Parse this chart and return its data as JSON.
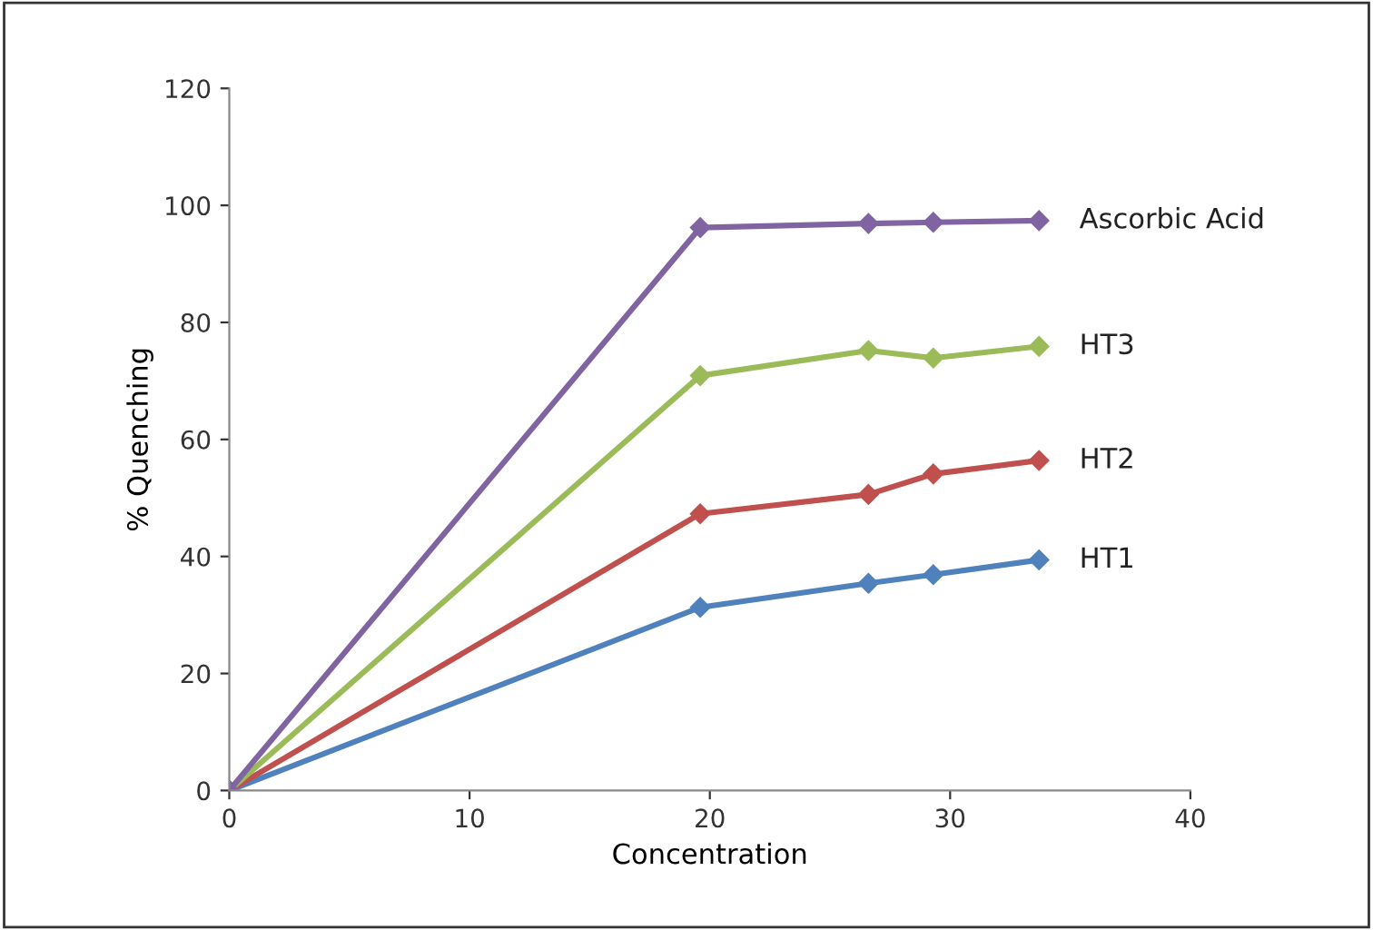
{
  "chart_data": {
    "type": "line",
    "xlabel": "Concentration",
    "ylabel": "% Quenching",
    "x": [
      0,
      19.6,
      26.6,
      29.3,
      33.7
    ],
    "xlim": [
      0,
      40
    ],
    "xticks": [
      0,
      10,
      20,
      30,
      40
    ],
    "ylim": [
      0,
      120
    ],
    "yticks": [
      0,
      20,
      40,
      60,
      80,
      100,
      120
    ],
    "grid": false,
    "legend": false,
    "marker": "diamond",
    "line_style": "solid",
    "series": [
      {
        "name": "HT1",
        "color": "#4f81bd",
        "values": [
          0,
          31.3,
          35.4,
          36.9,
          39.4
        ]
      },
      {
        "name": "HT2",
        "color": "#c0504d",
        "values": [
          0,
          47.3,
          50.6,
          54.1,
          56.4
        ]
      },
      {
        "name": "HT3",
        "color": "#9bbb59",
        "values": [
          0,
          70.9,
          75.2,
          73.9,
          75.9
        ]
      },
      {
        "name": "Ascorbic Acid",
        "color": "#8064a2",
        "values": [
          0,
          96.2,
          96.9,
          97.1,
          97.4
        ]
      }
    ]
  }
}
